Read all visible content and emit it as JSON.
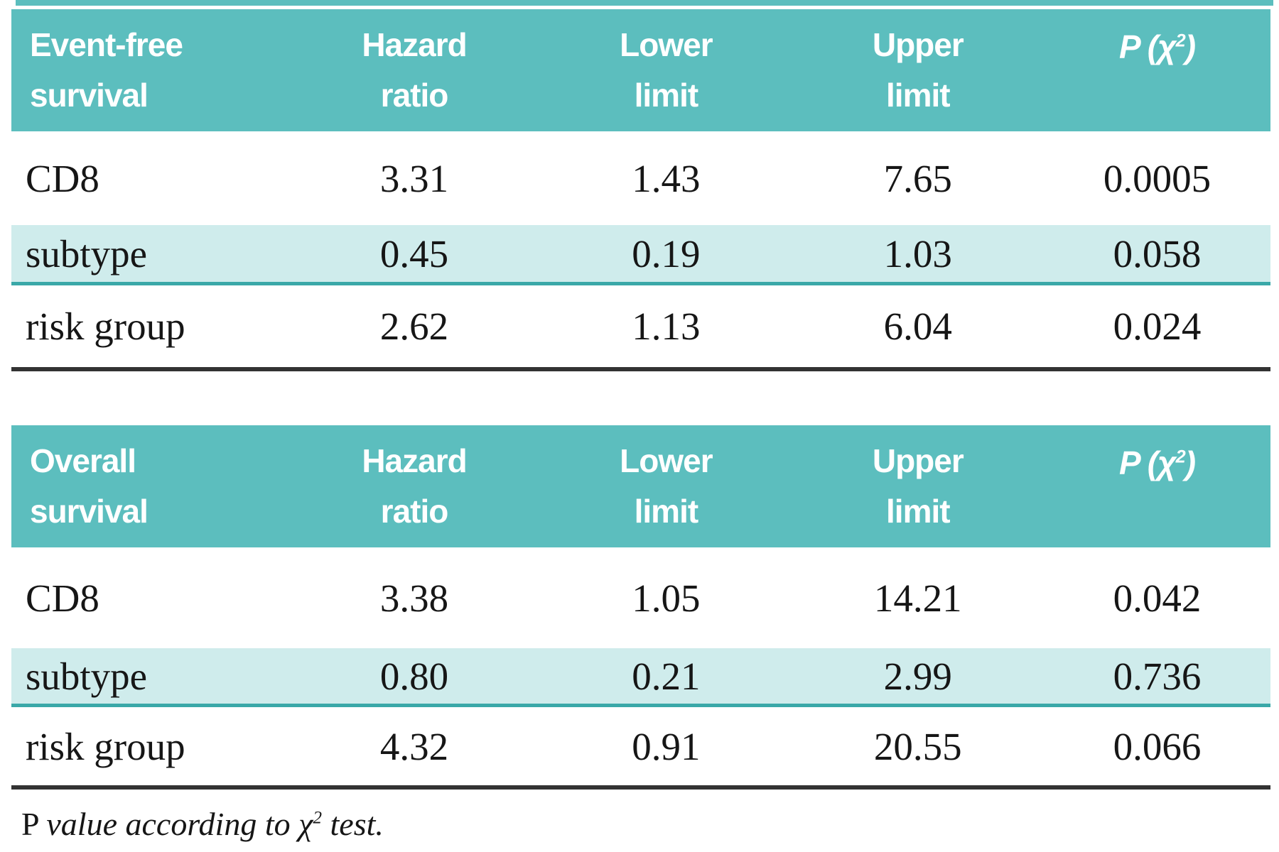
{
  "colors": {
    "header_bg": "#5cbebe",
    "highlight_row_bg": "#cfecec",
    "teal_rule": "#3aa8a8",
    "dark_rule": "#333333",
    "header_text": "#ffffff",
    "body_text": "#161616"
  },
  "p_header": {
    "p": "P",
    "open": " (",
    "chi": "χ",
    "sup": "2",
    "close": ")"
  },
  "tables": [
    {
      "title": {
        "line1": "Event-free",
        "line2": "survival"
      },
      "col_headers": [
        {
          "line1": "Hazard",
          "line2": "ratio"
        },
        {
          "line1": "Lower",
          "line2": "limit"
        },
        {
          "line1": "Upper",
          "line2": "limit"
        }
      ],
      "rows": [
        {
          "label": "CD8",
          "values": [
            "3.31",
            "1.43",
            "7.65",
            "0.0005"
          ],
          "highlight": false
        },
        {
          "label": "subtype",
          "values": [
            "0.45",
            "0.19",
            "1.03",
            "0.058"
          ],
          "highlight": true
        },
        {
          "label": "risk group",
          "values": [
            "2.62",
            "1.13",
            "6.04",
            "0.024"
          ],
          "highlight": false
        }
      ]
    },
    {
      "title": {
        "line1": "Overall",
        "line2": "survival"
      },
      "col_headers": [
        {
          "line1": "Hazard",
          "line2": "ratio"
        },
        {
          "line1": "Lower",
          "line2": "limit"
        },
        {
          "line1": "Upper",
          "line2": "limit"
        }
      ],
      "rows": [
        {
          "label": "CD8",
          "values": [
            "3.38",
            "1.05",
            "14.21",
            "0.042"
          ],
          "highlight": false
        },
        {
          "label": "subtype",
          "values": [
            "0.80",
            "0.21",
            "2.99",
            "0.736"
          ],
          "highlight": true
        },
        {
          "label": "risk group",
          "values": [
            "4.32",
            "0.91",
            "20.55",
            "0.066"
          ],
          "highlight": false
        }
      ]
    }
  ],
  "footnote": {
    "p": "P ",
    "lead_italic": "value according to ",
    "chi": "χ",
    "sup": "2",
    "tail_italic": " test."
  }
}
